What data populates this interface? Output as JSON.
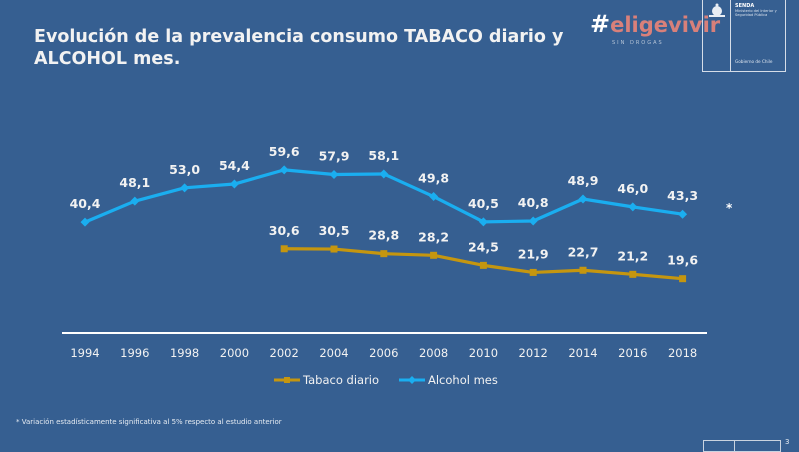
{
  "slide": {
    "title_line1": "Evolución de la prevalencia consumo TABACO diario y",
    "title_line2": "ALCOHOL mes.",
    "footnote": "* Variación estadísticamente significativa al 5% respecto al estudio anterior",
    "page_number": "3"
  },
  "branding": {
    "hashtag": "#",
    "campaign_word1": "elige",
    "campaign_word2": "vivir",
    "campaign_sub": "SIN DROGAS",
    "agency": "SENDA",
    "ministry": "Ministerio del Interior y Seguridad Pública",
    "government": "Gobierno de Chile"
  },
  "chart_data": {
    "type": "line",
    "title": "Evolución de la prevalencia consumo TABACO diario y ALCOHOL mes.",
    "xlabel": "",
    "ylabel": "",
    "x": [
      "1994",
      "1996",
      "1998",
      "2000",
      "2002",
      "2004",
      "2006",
      "2008",
      "2010",
      "2012",
      "2014",
      "2016",
      "2018"
    ],
    "ylim": [
      0,
      60
    ],
    "grid": false,
    "legend_position": "bottom",
    "series": [
      {
        "name": "Tabaco diario",
        "color": "#c5960f",
        "marker": "square",
        "values": [
          null,
          null,
          null,
          null,
          30.6,
          30.5,
          28.8,
          28.2,
          24.5,
          21.9,
          22.7,
          21.2,
          19.6
        ],
        "labels": [
          null,
          null,
          null,
          null,
          "30,6",
          "30,5",
          "28,8",
          "28,2",
          "24,5",
          "21,9",
          "22,7",
          "21,2",
          "19,6"
        ]
      },
      {
        "name": "Alcohol mes",
        "color": "#1aaef0",
        "marker": "diamond",
        "values": [
          40.4,
          48.1,
          53.0,
          54.4,
          59.6,
          57.9,
          58.1,
          49.8,
          40.5,
          40.8,
          48.9,
          46.0,
          43.3
        ],
        "labels": [
          "40,4",
          "48,1",
          "53,0",
          "54,4",
          "59,6",
          "57,9",
          "58,1",
          "49,8",
          "40,5",
          "40,8",
          "48,9",
          "46,0",
          "43,3"
        ]
      }
    ],
    "annotations": [
      {
        "text": "*",
        "attached_to": "Alcohol mes 2018"
      }
    ]
  }
}
